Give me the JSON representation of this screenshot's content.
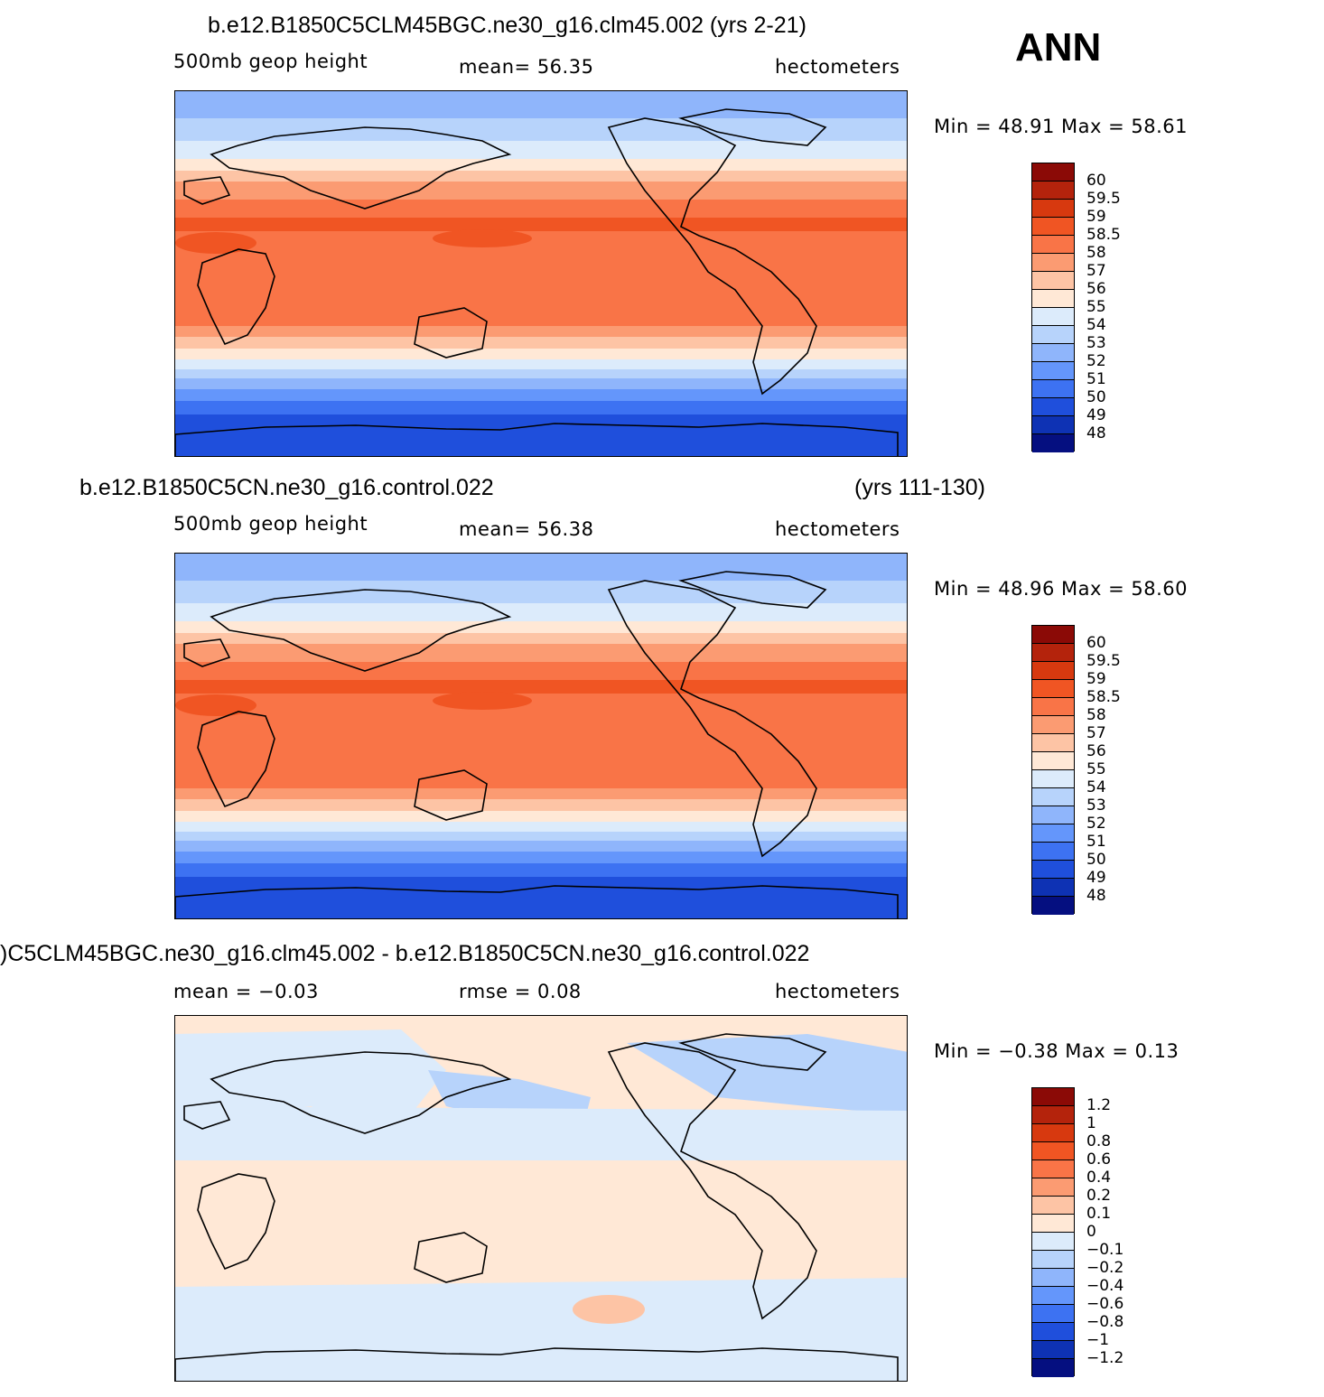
{
  "season": "ANN",
  "panels": [
    {
      "title": "b.e12.B1850C5CLM45BGC.ne30_g16.clm45.002 (yrs 2-21)",
      "title_right": "",
      "field": "500mb geop height",
      "mean_text": "mean=   56.35",
      "units": "hectometers",
      "minmax": "Min =   48.91  Max =   58.61",
      "colorbar_labels": [
        "60",
        "59.5",
        "59",
        "58.5",
        "58",
        "57",
        "56",
        "55",
        "54",
        "53",
        "52",
        "51",
        "50",
        "49",
        "48"
      ]
    },
    {
      "title": "b.e12.B1850C5CN.ne30_g16.control.022",
      "title_right": "(yrs 111-130)",
      "field": "500mb geop height",
      "mean_text": "mean=   56.38",
      "units": "hectometers",
      "minmax": "Min =   48.96  Max =   58.60",
      "colorbar_labels": [
        "60",
        "59.5",
        "59",
        "58.5",
        "58",
        "57",
        "56",
        "55",
        "54",
        "53",
        "52",
        "51",
        "50",
        "49",
        "48"
      ]
    },
    {
      "title": ")C5CLM45BGC.ne30_g16.clm45.002 - b.e12.B1850C5CN.ne30_g16.control.022",
      "title_right": "",
      "field": "mean =   −0.03",
      "mean_text": "rmse =     0.08",
      "units": "hectometers",
      "minmax": "Min =   −0.38  Max =     0.13",
      "colorbar_labels": [
        "1.2",
        "1",
        "0.8",
        "0.6",
        "0.4",
        "0.2",
        "0.1",
        "0",
        "−0.1",
        "−0.2",
        "−0.4",
        "−0.6",
        "−0.8",
        "−1",
        "−1.2"
      ]
    }
  ],
  "colorbar_colors": [
    "#8b0a06",
    "#b4230c",
    "#d7390f",
    "#f05523",
    "#f97447",
    "#fb9b72",
    "#fdc4a5",
    "#ffe8d6",
    "#dcebfb",
    "#b7d3fb",
    "#8fb5fb",
    "#6496fb",
    "#3d72f2",
    "#1f4fdc",
    "#0e32b4",
    "#050f80"
  ],
  "icons": [
    "world-map-icon"
  ]
}
